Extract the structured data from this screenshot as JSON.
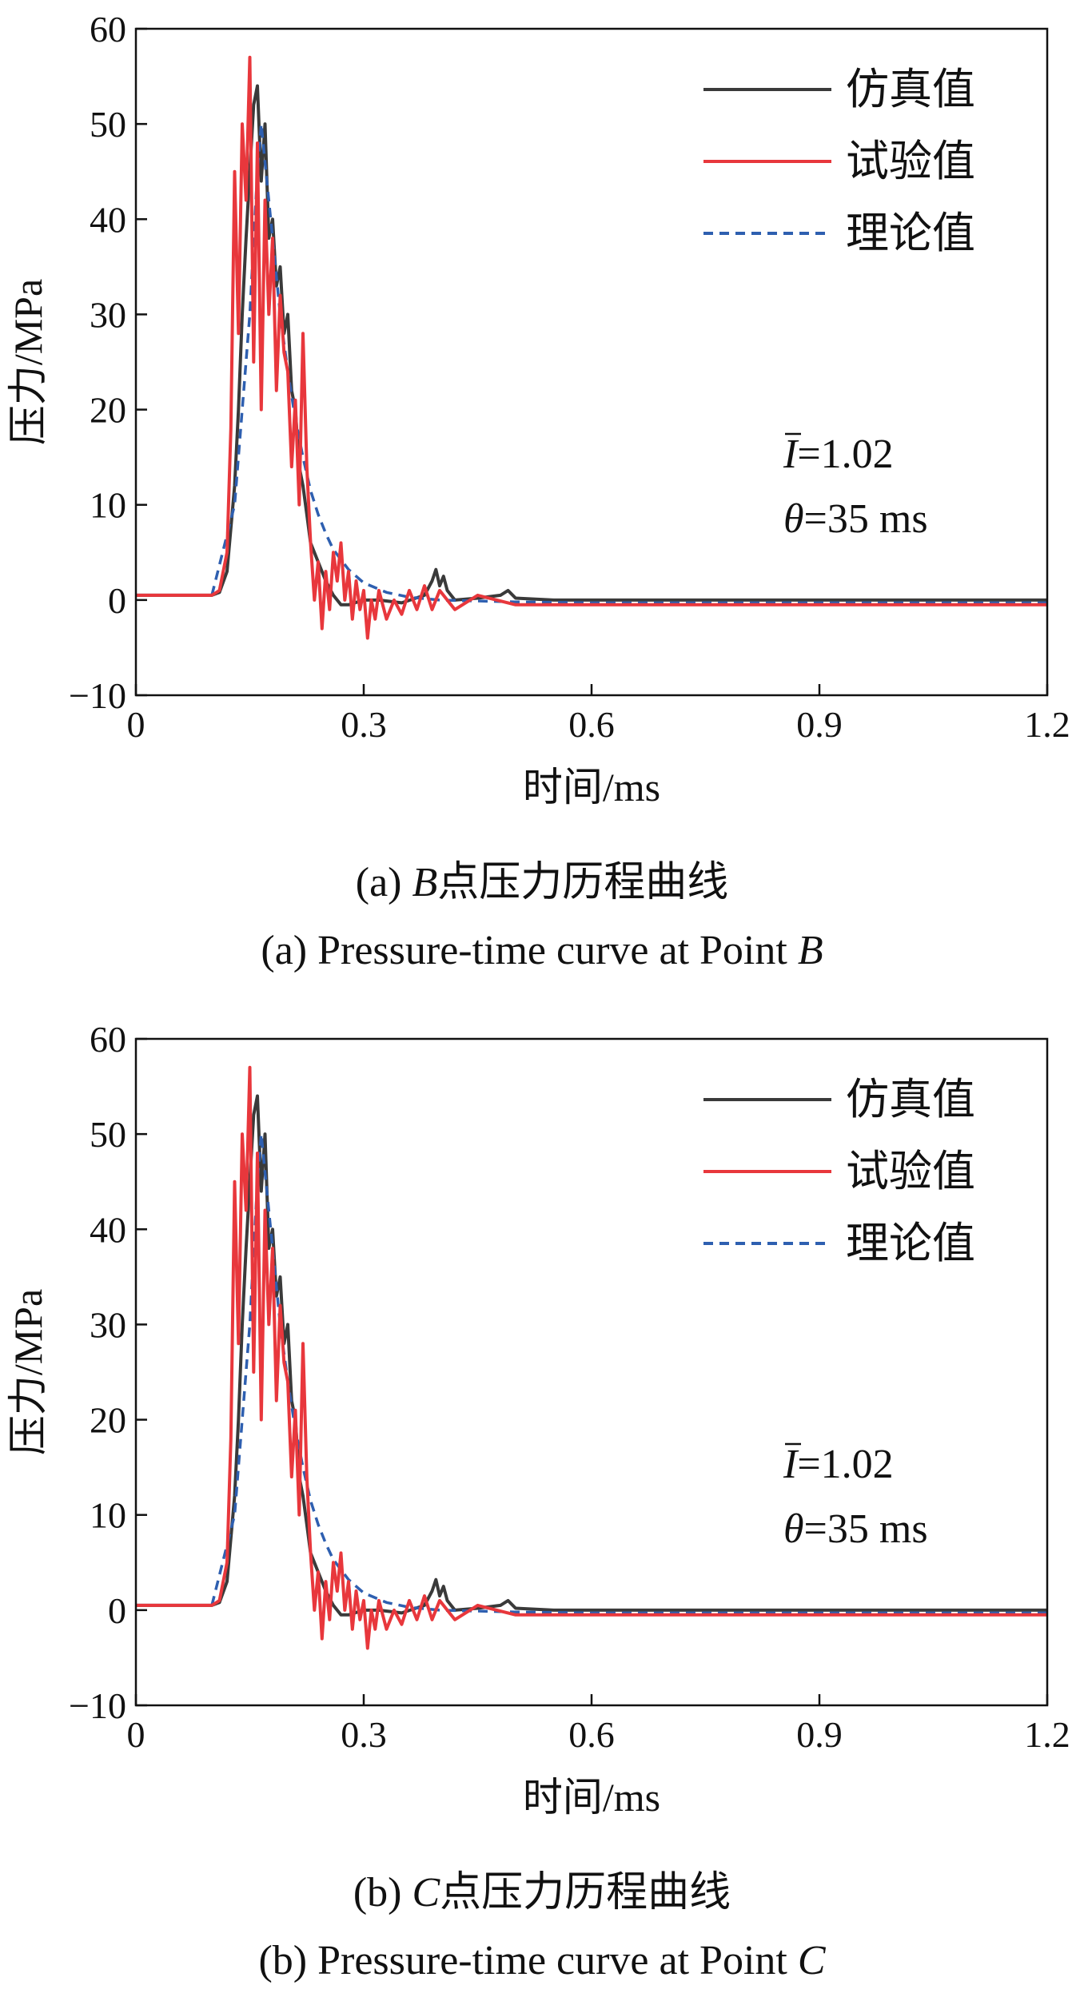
{
  "chart_data": [
    {
      "id": "a",
      "type": "line",
      "xlabel": "时间/ms",
      "ylabel": "压力/MPa",
      "xlim": [
        0,
        1.2
      ],
      "ylim": [
        -10,
        60
      ],
      "xticks": [
        0,
        0.3,
        0.6,
        0.9,
        1.2
      ],
      "xtick_labels": [
        "0",
        "0.3",
        "0.6",
        "0.9",
        "1.2"
      ],
      "yticks": [
        -10,
        0,
        10,
        20,
        30,
        40,
        50,
        60
      ],
      "ytick_labels": [
        "−10",
        "0",
        "10",
        "20",
        "30",
        "40",
        "50",
        "60"
      ],
      "grid": false,
      "legend_position": "top-right",
      "annotation": {
        "i_symbol": "I",
        "i_value": "=1.02",
        "theta_symbol": "θ",
        "theta_value": "=35 ms"
      },
      "caption_cn": {
        "prefix": "(a) ",
        "point": "B",
        "text": "点压力历程曲线"
      },
      "caption_en": {
        "text": "(a) Pressure-time curve at Point ",
        "point": "B"
      },
      "series": [
        {
          "name": "仿真值",
          "color": "#3a3a3a",
          "style": "solid",
          "x": [
            0,
            0.1,
            0.11,
            0.12,
            0.13,
            0.135,
            0.14,
            0.145,
            0.15,
            0.155,
            0.16,
            0.163,
            0.165,
            0.17,
            0.175,
            0.18,
            0.185,
            0.19,
            0.195,
            0.2,
            0.205,
            0.21,
            0.215,
            0.22,
            0.225,
            0.23,
            0.24,
            0.25,
            0.26,
            0.27,
            0.28,
            0.3,
            0.32,
            0.35,
            0.38,
            0.39,
            0.395,
            0.4,
            0.405,
            0.41,
            0.42,
            0.45,
            0.48,
            0.49,
            0.5,
            0.55,
            0.6,
            0.7,
            0.8,
            0.9,
            1.0,
            1.1,
            1.2
          ],
          "y": [
            0.5,
            0.5,
            0.8,
            3,
            12,
            20,
            30,
            38,
            45,
            52,
            54,
            48,
            44,
            50,
            38,
            40,
            33,
            35,
            28,
            30,
            22,
            20,
            14,
            12,
            9,
            6,
            4,
            2,
            0.5,
            -0.5,
            -0.5,
            0,
            0,
            -0.3,
            0.5,
            2,
            3.2,
            1.5,
            2.5,
            1,
            0,
            0.2,
            0.5,
            1,
            0.2,
            0,
            0,
            0,
            0,
            0,
            0,
            0,
            0
          ]
        },
        {
          "name": "试验值",
          "color": "#e8373c",
          "style": "solid",
          "x": [
            0,
            0.1,
            0.11,
            0.12,
            0.125,
            0.13,
            0.135,
            0.14,
            0.145,
            0.15,
            0.155,
            0.16,
            0.165,
            0.17,
            0.175,
            0.18,
            0.185,
            0.19,
            0.195,
            0.2,
            0.205,
            0.21,
            0.215,
            0.22,
            0.225,
            0.23,
            0.235,
            0.24,
            0.245,
            0.25,
            0.255,
            0.26,
            0.265,
            0.27,
            0.275,
            0.28,
            0.285,
            0.29,
            0.295,
            0.3,
            0.305,
            0.31,
            0.315,
            0.32,
            0.33,
            0.34,
            0.35,
            0.36,
            0.37,
            0.38,
            0.39,
            0.4,
            0.41,
            0.42,
            0.45,
            0.5,
            0.6,
            0.7,
            0.8,
            0.9,
            1.0,
            1.1,
            1.2
          ],
          "y": [
            0.5,
            0.5,
            1,
            5,
            18,
            45,
            28,
            50,
            42,
            57,
            25,
            48,
            20,
            42,
            30,
            38,
            22,
            32,
            26,
            24,
            14,
            21,
            10,
            28,
            14,
            6,
            0,
            4,
            -3,
            3,
            -1,
            5,
            2,
            6,
            0,
            3,
            -2,
            2,
            -1,
            1,
            -4,
            0,
            -2,
            1,
            -2,
            0,
            -1.5,
            1,
            -1,
            1.5,
            -1,
            1,
            0,
            -1,
            0.5,
            -0.5,
            -0.5,
            -0.5,
            -0.5,
            -0.5,
            -0.5,
            -0.5,
            -0.5
          ]
        },
        {
          "name": "理论值",
          "color": "#2e5fb0",
          "style": "dashed",
          "x": [
            0.1,
            0.13,
            0.15,
            0.16,
            0.165,
            0.17,
            0.18,
            0.19,
            0.2,
            0.21,
            0.22,
            0.23,
            0.24,
            0.25,
            0.26,
            0.28,
            0.3,
            0.33,
            0.36,
            0.4,
            0.5,
            0.6,
            0.8,
            1.0,
            1.2
          ],
          "y": [
            0.5,
            10,
            30,
            45,
            50,
            46,
            38,
            30,
            24,
            19,
            15,
            11.5,
            9,
            7,
            5.3,
            3.2,
            1.8,
            0.8,
            0.3,
            0,
            -0.2,
            -0.3,
            -0.3,
            -0.3,
            -0.3
          ]
        }
      ]
    },
    {
      "id": "b",
      "type": "line",
      "xlabel": "时间/ms",
      "ylabel": "压力/MPa",
      "xlim": [
        0,
        1.2
      ],
      "ylim": [
        -10,
        60
      ],
      "xticks": [
        0,
        0.3,
        0.6,
        0.9,
        1.2
      ],
      "xtick_labels": [
        "0",
        "0.3",
        "0.6",
        "0.9",
        "1.2"
      ],
      "yticks": [
        -10,
        0,
        10,
        20,
        30,
        40,
        50,
        60
      ],
      "ytick_labels": [
        "−10",
        "0",
        "10",
        "20",
        "30",
        "40",
        "50",
        "60"
      ],
      "grid": false,
      "legend_position": "top-right",
      "annotation": {
        "i_symbol": "I",
        "i_value": "=1.02",
        "theta_symbol": "θ",
        "theta_value": "=35 ms"
      },
      "caption_cn": {
        "prefix": "(b) ",
        "point": "C",
        "text": "点压力历程曲线"
      },
      "caption_en": {
        "text": "(b) Pressure-time curve at Point ",
        "point": "C"
      },
      "series": [
        {
          "name": "仿真值",
          "color": "#3a3a3a",
          "style": "solid",
          "x": [
            0,
            0.1,
            0.11,
            0.12,
            0.13,
            0.135,
            0.14,
            0.145,
            0.15,
            0.155,
            0.16,
            0.163,
            0.165,
            0.17,
            0.175,
            0.18,
            0.185,
            0.19,
            0.195,
            0.2,
            0.205,
            0.21,
            0.215,
            0.22,
            0.225,
            0.23,
            0.24,
            0.25,
            0.26,
            0.27,
            0.28,
            0.3,
            0.32,
            0.35,
            0.38,
            0.39,
            0.395,
            0.4,
            0.405,
            0.41,
            0.42,
            0.45,
            0.48,
            0.49,
            0.5,
            0.55,
            0.6,
            0.7,
            0.8,
            0.9,
            1.0,
            1.1,
            1.2
          ],
          "y": [
            0.5,
            0.5,
            0.8,
            3,
            12,
            20,
            30,
            38,
            45,
            52,
            54,
            48,
            44,
            50,
            38,
            40,
            33,
            35,
            28,
            30,
            22,
            20,
            14,
            12,
            9,
            6,
            4,
            2,
            0.5,
            -0.5,
            -0.5,
            0,
            0,
            -0.3,
            0.5,
            2,
            3.2,
            1.5,
            2.5,
            1,
            0,
            0.2,
            0.5,
            1,
            0.2,
            0,
            0,
            0,
            0,
            0,
            0,
            0,
            0
          ]
        },
        {
          "name": "试验值",
          "color": "#e8373c",
          "style": "solid",
          "x": [
            0,
            0.1,
            0.11,
            0.12,
            0.125,
            0.13,
            0.135,
            0.14,
            0.145,
            0.15,
            0.155,
            0.16,
            0.165,
            0.17,
            0.175,
            0.18,
            0.185,
            0.19,
            0.195,
            0.2,
            0.205,
            0.21,
            0.215,
            0.22,
            0.225,
            0.23,
            0.235,
            0.24,
            0.245,
            0.25,
            0.255,
            0.26,
            0.265,
            0.27,
            0.275,
            0.28,
            0.285,
            0.29,
            0.295,
            0.3,
            0.305,
            0.31,
            0.315,
            0.32,
            0.33,
            0.34,
            0.35,
            0.36,
            0.37,
            0.38,
            0.39,
            0.4,
            0.41,
            0.42,
            0.45,
            0.5,
            0.6,
            0.7,
            0.8,
            0.9,
            1.0,
            1.1,
            1.2
          ],
          "y": [
            0.5,
            0.5,
            1,
            5,
            18,
            45,
            28,
            50,
            42,
            57,
            25,
            48,
            20,
            42,
            30,
            38,
            22,
            32,
            26,
            24,
            14,
            21,
            10,
            28,
            14,
            6,
            0,
            4,
            -3,
            3,
            -1,
            5,
            2,
            6,
            0,
            3,
            -2,
            2,
            -1,
            1,
            -4,
            0,
            -2,
            1,
            -2,
            0,
            -1.5,
            1,
            -1,
            1.5,
            -1,
            1,
            0,
            -1,
            0.5,
            -0.5,
            -0.5,
            -0.5,
            -0.5,
            -0.5,
            -0.5,
            -0.5,
            -0.5
          ]
        },
        {
          "name": "理论值",
          "color": "#2e5fb0",
          "style": "dashed",
          "x": [
            0.1,
            0.13,
            0.15,
            0.16,
            0.165,
            0.17,
            0.18,
            0.19,
            0.2,
            0.21,
            0.22,
            0.23,
            0.24,
            0.25,
            0.26,
            0.28,
            0.3,
            0.33,
            0.36,
            0.4,
            0.5,
            0.6,
            0.8,
            1.0,
            1.2
          ],
          "y": [
            0.5,
            10,
            30,
            45,
            50,
            46,
            38,
            30,
            24,
            19,
            15,
            11.5,
            9,
            7,
            5.3,
            3.2,
            1.8,
            0.8,
            0.3,
            0,
            -0.2,
            -0.3,
            -0.3,
            -0.3,
            -0.3
          ]
        }
      ]
    }
  ]
}
